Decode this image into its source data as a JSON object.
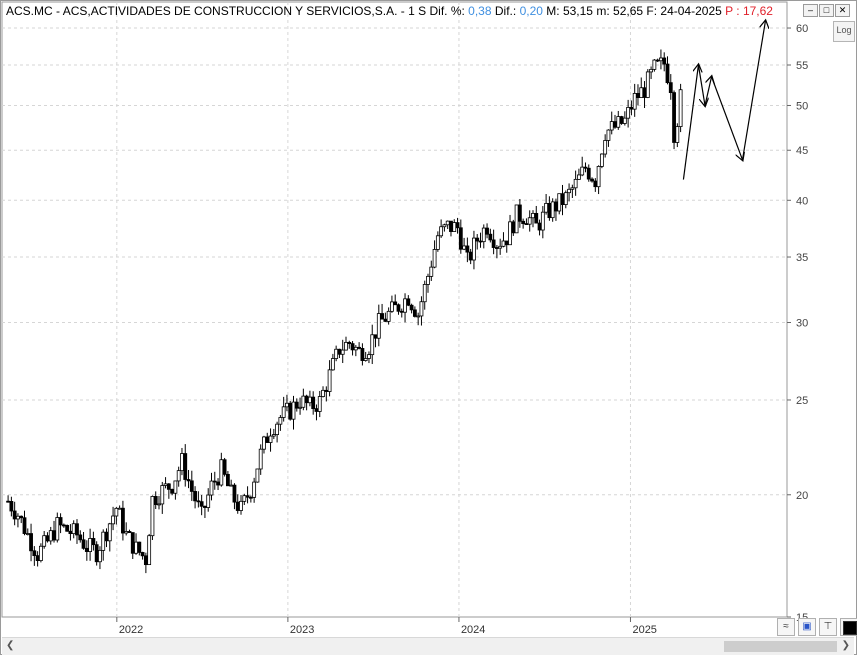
{
  "header": {
    "ticker": "ACS.MC",
    "name": "ACS,ACTIVIDADES DE CONSTRUCCION Y SERVICIOS,S.A.",
    "period": "1 S",
    "dif_pct_label": "Dif. %:",
    "dif_pct_value": "0,38",
    "dif_label": "Dif.:",
    "dif_value": "0,20",
    "max_label": "M:",
    "max_value": "53,15",
    "min_label": "m:",
    "min_value": "52,65",
    "date_label": "F:",
    "date_value": "24-04-2025",
    "p_label": "P :",
    "p_value": "17,62"
  },
  "controls": {
    "minimize_icon": "minimize-icon",
    "maximize_icon": "maximize-icon",
    "close_icon": "close-icon",
    "log_label": "Log"
  },
  "colors": {
    "candle": "#000000",
    "grid": "#d6d6d6",
    "positive_value": "#3f8fe0",
    "p_value": "#e0202a"
  },
  "chart_data": {
    "type": "candlestick",
    "yscale": "log",
    "ylim": [
      15,
      61
    ],
    "yticks": [
      15,
      20,
      25,
      30,
      35,
      40,
      45,
      50,
      55,
      60
    ],
    "xticks": [
      "2022",
      "2023",
      "2024",
      "2025"
    ],
    "xlim": [
      "2021-05",
      "2025-12"
    ],
    "grid": true,
    "weekly_close": [
      [
        "2021-05-14",
        19.7
      ],
      [
        "2021-06-04",
        19.1
      ],
      [
        "2021-06-25",
        18.2
      ],
      [
        "2021-07-16",
        17.4
      ],
      [
        "2021-08-06",
        17.9
      ],
      [
        "2021-08-27",
        18.6
      ],
      [
        "2021-09-17",
        18.4
      ],
      [
        "2021-10-08",
        18.2
      ],
      [
        "2021-10-29",
        17.7
      ],
      [
        "2021-11-19",
        17.5
      ],
      [
        "2021-12-10",
        18.4
      ],
      [
        "2021-12-31",
        19.4
      ],
      [
        "2022-01-21",
        18.2
      ],
      [
        "2022-02-11",
        17.6
      ],
      [
        "2022-03-04",
        17.2
      ],
      [
        "2022-03-18",
        19.8
      ],
      [
        "2022-04-08",
        20.2
      ],
      [
        "2022-04-29",
        20.5
      ],
      [
        "2022-05-20",
        21.6
      ],
      [
        "2022-06-10",
        20.2
      ],
      [
        "2022-07-01",
        19.0
      ],
      [
        "2022-07-22",
        20.4
      ],
      [
        "2022-08-12",
        21.2
      ],
      [
        "2022-09-02",
        20.0
      ],
      [
        "2022-09-23",
        19.3
      ],
      [
        "2022-10-14",
        20.3
      ],
      [
        "2022-11-04",
        22.0
      ],
      [
        "2022-11-25",
        23.4
      ],
      [
        "2022-12-16",
        24.0
      ],
      [
        "2023-01-06",
        24.4
      ],
      [
        "2023-01-27",
        25.0
      ],
      [
        "2023-02-17",
        24.6
      ],
      [
        "2023-03-10",
        24.9
      ],
      [
        "2023-03-31",
        26.5
      ],
      [
        "2023-04-21",
        28.2
      ],
      [
        "2023-05-12",
        28.6
      ],
      [
        "2023-06-02",
        28.0
      ],
      [
        "2023-06-23",
        28.4
      ],
      [
        "2023-07-14",
        29.9
      ],
      [
        "2023-08-04",
        30.6
      ],
      [
        "2023-08-25",
        31.2
      ],
      [
        "2023-09-15",
        31.9
      ],
      [
        "2023-10-06",
        30.6
      ],
      [
        "2023-10-27",
        33.5
      ],
      [
        "2023-11-17",
        36.8
      ],
      [
        "2023-12-08",
        37.6
      ],
      [
        "2023-12-29",
        37.5
      ],
      [
        "2024-01-19",
        34.6
      ],
      [
        "2024-02-09",
        36.5
      ],
      [
        "2024-03-01",
        37.7
      ],
      [
        "2024-03-22",
        36.2
      ],
      [
        "2024-04-12",
        36.7
      ],
      [
        "2024-05-03",
        38.6
      ],
      [
        "2024-05-24",
        38.6
      ],
      [
        "2024-06-14",
        37.6
      ],
      [
        "2024-07-05",
        38.8
      ],
      [
        "2024-07-26",
        39.5
      ],
      [
        "2024-08-16",
        40.2
      ],
      [
        "2024-09-06",
        41.5
      ],
      [
        "2024-09-27",
        43.2
      ],
      [
        "2024-10-18",
        42.0
      ],
      [
        "2024-11-08",
        47.0
      ],
      [
        "2024-11-29",
        47.5
      ],
      [
        "2024-12-20",
        48.2
      ],
      [
        "2025-01-10",
        50.8
      ],
      [
        "2025-01-31",
        52.0
      ],
      [
        "2025-02-21",
        54.5
      ],
      [
        "2025-03-14",
        55.2
      ],
      [
        "2025-03-28",
        52.5
      ],
      [
        "2025-04-04",
        47.0
      ],
      [
        "2025-04-11",
        48.5
      ],
      [
        "2025-04-24",
        52.9
      ]
    ],
    "annotation_line": [
      [
        "2025-04-24",
        42.0
      ],
      [
        "2025-05-26",
        55.0
      ],
      [
        "2025-06-09",
        50.0
      ],
      [
        "2025-06-23",
        53.5
      ],
      [
        "2025-08-28",
        44.0
      ],
      [
        "2025-10-16",
        61.0
      ]
    ]
  },
  "footer": {
    "scroll_left_icon": "chevron-left-icon",
    "scroll_right_icon": "chevron-right-icon",
    "tool_icons": [
      "indicator-icon",
      "save-icon",
      "pin-icon",
      "color-swatch-icon"
    ]
  }
}
